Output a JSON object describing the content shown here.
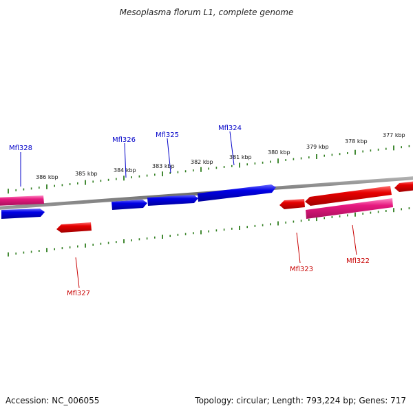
{
  "title": "Mesoplasma florum L1, complete genome",
  "footer": {
    "accession": "Accession: NC_006055",
    "summary": "Topology: circular; Length: 793,224 bp; Genes: 717"
  },
  "colors": {
    "backbone": "#7a7a7a",
    "tick": "#2e7d1e",
    "forward_gene": "#0000e6",
    "reverse_gene": "#e60000",
    "forward_rna": "#e6197f",
    "forward_label": "#0000c8",
    "reverse_label": "#c80000"
  },
  "scale_labels": [
    "386 kbp",
    "385 kbp",
    "384 kbp",
    "383 kbp",
    "382 kbp",
    "381 kbp",
    "380 kbp",
    "379 kbp",
    "378 kbp",
    "377 kbp"
  ],
  "gene_labels": [
    {
      "name": "Mfl328",
      "strand": "forward"
    },
    {
      "name": "Mfl326",
      "strand": "forward"
    },
    {
      "name": "Mfl325",
      "strand": "forward"
    },
    {
      "name": "Mfl324",
      "strand": "forward"
    },
    {
      "name": "Mfl327",
      "strand": "reverse"
    },
    {
      "name": "Mfl323",
      "strand": "reverse"
    },
    {
      "name": "Mfl322",
      "strand": "reverse"
    }
  ]
}
